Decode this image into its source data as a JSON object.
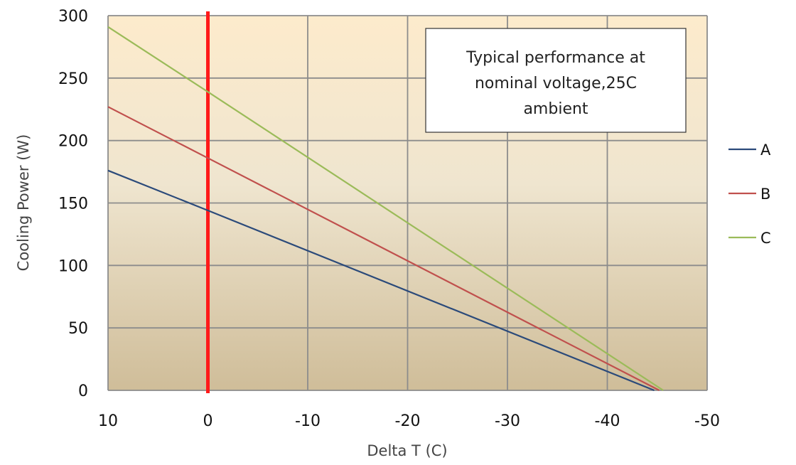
{
  "chart_data": {
    "type": "line",
    "title": "",
    "xlabel": "Delta T (C)",
    "ylabel": "Cooling Power (W)",
    "xlim": [
      10,
      -50
    ],
    "ylim": [
      0,
      300
    ],
    "x_ticks": [
      "10",
      "0",
      "-10",
      "-20",
      "-30",
      "-40",
      "-50"
    ],
    "y_ticks": [
      "0",
      "50",
      "100",
      "150",
      "200",
      "250",
      "300"
    ],
    "grid": true,
    "legend_position": "right",
    "annotation": [
      "Typical performance at",
      "nominal voltage,25C",
      "ambient"
    ],
    "reference_line": {
      "x": 0,
      "color": "#ff1a1a"
    },
    "background_gradient": [
      "#fdebcc",
      "#cfbd99"
    ],
    "series": [
      {
        "name": "A",
        "color": "#2b4a7a",
        "points": [
          [
            10,
            176
          ],
          [
            0,
            144
          ],
          [
            -44.7,
            0
          ]
        ]
      },
      {
        "name": "B",
        "color": "#c0504d",
        "points": [
          [
            10,
            227
          ],
          [
            0,
            186
          ],
          [
            -45.2,
            0
          ]
        ]
      },
      {
        "name": "C",
        "color": "#9bbb59",
        "points": [
          [
            10,
            291
          ],
          [
            0,
            239
          ],
          [
            -45.6,
            0
          ]
        ]
      }
    ]
  }
}
